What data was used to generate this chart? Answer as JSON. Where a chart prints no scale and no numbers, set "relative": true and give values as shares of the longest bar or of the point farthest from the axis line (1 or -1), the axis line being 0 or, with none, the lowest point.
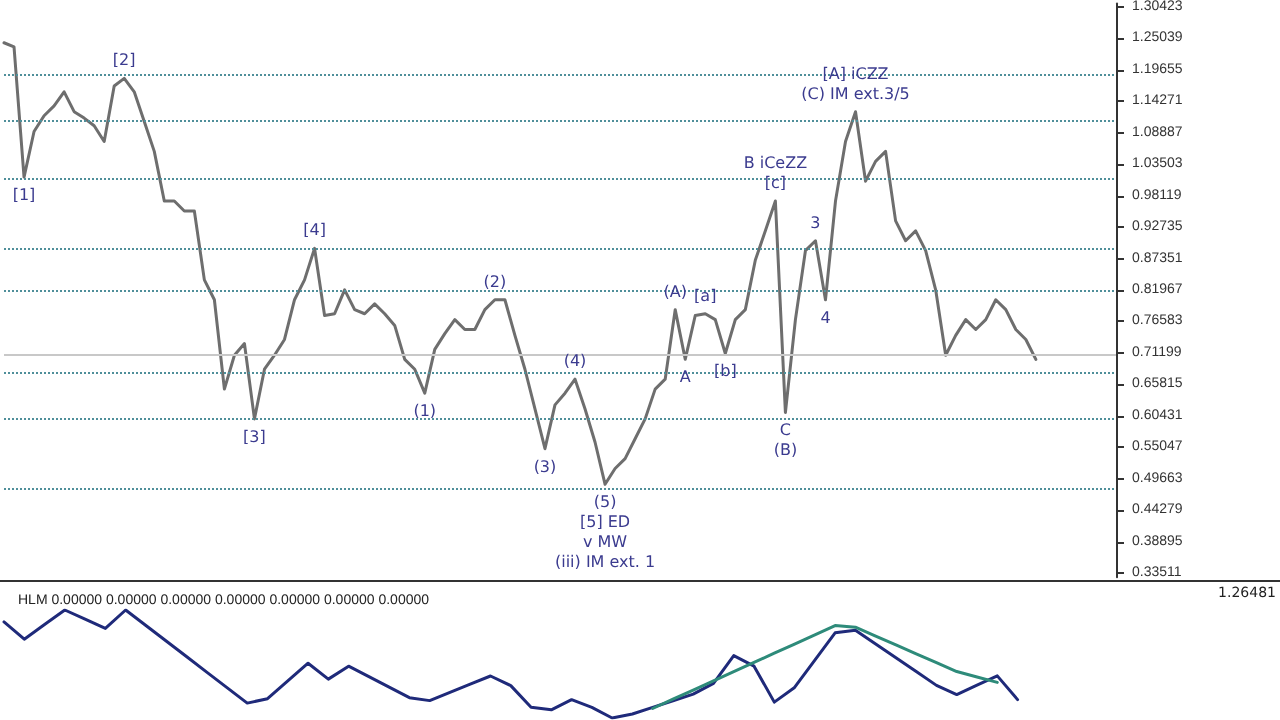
{
  "chart_data": [
    {
      "type": "line",
      "categories": [
        null,
        null,
        null,
        null,
        null,
        null,
        null,
        null,
        null,
        null,
        null,
        null,
        null,
        null,
        null,
        null,
        null,
        null,
        null,
        null,
        null,
        null,
        null,
        null,
        null,
        null,
        null,
        null,
        null,
        null,
        null,
        null,
        null,
        null,
        null,
        null,
        null,
        null,
        null,
        null,
        null,
        null,
        null,
        null,
        null,
        null,
        null,
        null,
        null,
        null,
        null,
        null,
        null,
        null,
        null,
        null,
        null,
        null,
        null,
        null,
        null,
        null,
        null,
        null,
        null,
        null,
        null,
        null,
        null,
        null,
        null,
        null,
        null,
        null,
        null,
        null,
        null,
        null,
        null,
        null,
        null,
        null,
        null,
        null,
        null,
        null,
        null,
        null,
        null,
        null,
        null,
        null,
        null,
        null,
        null,
        null,
        null,
        null,
        null,
        null,
        null,
        null,
        null,
        null,
        null,
        null,
        null,
        null,
        null,
        null,
        null,
        null
      ],
      "series": [
        {
          "color": "#6e6e6e",
          "values": [
            1.243,
            1.236,
            1.013,
            1.091,
            1.118,
            1.135,
            1.159,
            1.125,
            1.114,
            1.101,
            1.074,
            1.169,
            1.182,
            1.159,
            1.108,
            1.057,
            0.972,
            0.972,
            0.955,
            0.955,
            0.837,
            0.803,
            0.65,
            0.708,
            0.728,
            0.599,
            0.684,
            0.708,
            0.735,
            0.803,
            0.837,
            0.891,
            0.776,
            0.779,
            0.82,
            0.786,
            0.779,
            0.796,
            0.779,
            0.759,
            0.701,
            0.684,
            0.643,
            0.718,
            0.745,
            0.769,
            0.752,
            0.752,
            0.786,
            0.803,
            0.803,
            0.742,
            0.684,
            0.616,
            0.548,
            0.623,
            0.643,
            0.667,
            0.616,
            0.559,
            0.487,
            0.514,
            0.531,
            0.565,
            0.599,
            0.65,
            0.667,
            0.786,
            0.701,
            0.776,
            0.779,
            0.769,
            0.711,
            0.769,
            0.786,
            0.871,
            0.921,
            0.972,
            0.61,
            0.769,
            0.887,
            0.904,
            0.803,
            0.972,
            1.074,
            1.125,
            1.006,
            1.04,
            1.057,
            0.938,
            0.904,
            0.921,
            0.887,
            0.82,
            0.708,
            0.742,
            0.769,
            0.752,
            0.769,
            0.803,
            0.786,
            0.752,
            0.735,
            0.701,
            null,
            null,
            null,
            null,
            null,
            null,
            null,
            null
          ]
        }
      ],
      "ylim": [
        0.328,
        1.31
      ],
      "yticks": [
        0.33511,
        0.38895,
        0.44279,
        0.49663,
        0.55047,
        0.60431,
        0.65815,
        0.71199,
        0.76583,
        0.81967,
        0.87351,
        0.92735,
        0.98119,
        1.03503,
        1.08887,
        1.14271,
        1.19655,
        1.25039,
        1.30423
      ],
      "tick_labels": "y",
      "marker": "none",
      "line_style": "solid",
      "ref_lines": [
        {
          "axis": "y",
          "value": 1.192,
          "color": "#4f8f9a",
          "line_style": "dotted"
        },
        {
          "axis": "y",
          "value": 1.108,
          "color": "#4f8f9a",
          "line_style": "dotted"
        },
        {
          "axis": "y",
          "value": 1.013,
          "color": "#4f8f9a",
          "line_style": "dotted"
        },
        {
          "axis": "y",
          "value": 0.894,
          "color": "#4f8f9a",
          "line_style": "dotted"
        },
        {
          "axis": "y",
          "value": 0.823,
          "color": "#4f8f9a",
          "line_style": "dotted"
        },
        {
          "axis": "y",
          "value": 0.71199,
          "color": "#c8c8c8",
          "line_style": "solid"
        },
        {
          "axis": "y",
          "value": 0.677,
          "color": "#4f8f9a",
          "line_style": "dotted"
        },
        {
          "axis": "y",
          "value": 0.603,
          "color": "#4f8f9a",
          "line_style": "dotted"
        },
        {
          "axis": "y",
          "value": 0.477,
          "color": "#4f8f9a",
          "line_style": "dotted"
        }
      ],
      "annotations": [
        {
          "text": "[1]",
          "y": 1.013
        },
        {
          "text": "[2]",
          "y": 1.182
        },
        {
          "text": "[3]",
          "y": 0.599
        },
        {
          "text": "[4]",
          "y": 0.891
        },
        {
          "text": "(1)",
          "y": 0.643
        },
        {
          "text": "(2)",
          "y": 0.803
        },
        {
          "text": "(3)",
          "y": 0.548
        },
        {
          "text": "(4)",
          "y": 0.667
        },
        {
          "text": "(5)",
          "y": 0.487
        },
        "[5] ED",
        "v MW",
        "(iii) IM ext. 1",
        {
          "text": "(A)",
          "y": 0.786
        },
        {
          "text": "A",
          "y": 0.701
        },
        {
          "text": "[a]",
          "y": 0.779
        },
        {
          "text": "[b]",
          "y": 0.711
        },
        {
          "text": "[c]",
          "y": 0.972
        },
        {
          "text": "B iCeZZ",
          "y": 0.972
        },
        {
          "text": "C",
          "y": 0.61
        },
        {
          "text": "(B)",
          "y": 0.61
        },
        {
          "text": "3",
          "y": 0.904
        },
        {
          "text": "4",
          "y": 0.803
        },
        {
          "text": "(C) IM ext.3/5",
          "y": 1.125
        },
        {
          "text": "[A] iCZZ",
          "y": 1.125
        }
      ]
    },
    {
      "type": "line",
      "title": "HLM 0.00000 0.00000 0.00000 0.00000 0.00000 0.00000 0.00000",
      "relative": true,
      "tick_labels": false,
      "marker": "none",
      "annotations": [
        "1.26481"
      ],
      "categories": [
        null,
        null,
        null,
        null,
        null,
        null,
        null,
        null,
        null,
        null,
        null,
        null,
        null,
        null,
        null,
        null,
        null,
        null,
        null,
        null,
        null,
        null,
        null,
        null,
        null,
        null,
        null,
        null,
        null,
        null,
        null,
        null,
        null,
        null,
        null,
        null,
        null,
        null,
        null,
        null,
        null,
        null,
        null,
        null,
        null,
        null,
        null,
        null,
        null,
        null,
        null,
        null,
        null,
        null,
        null,
        null,
        null,
        null,
        null,
        null
      ],
      "series": [
        {
          "color": "#1f2a7a",
          "values": [
            0.89,
            0.73,
            0.865,
            1,
            0.915,
            0.83,
            1,
            0.856,
            0.713,
            0.569,
            0.425,
            0.281,
            0.138,
            0.179,
            0.343,
            0.507,
            0.36,
            0.48,
            0.383,
            0.286,
            0.188,
            0.161,
            0.237,
            0.313,
            0.389,
            0.3,
            0.1,
            0.076,
            0.17,
            0.099,
            0,
            0.037,
            0.098,
            0.16,
            0.221,
            0.321,
            0.578,
            0.48,
            0.147,
            0.283,
            0.536,
            0.789,
            0.813,
            0.686,
            0.558,
            0.43,
            0.302,
            0.217,
            0.304,
            0.39,
            0.17,
            null,
            null,
            null,
            null,
            null,
            null,
            null,
            null,
            null
          ]
        },
        {
          "color": "#2e8b7a",
          "values": [
            null,
            null,
            null,
            null,
            null,
            null,
            null,
            null,
            null,
            null,
            null,
            null,
            null,
            null,
            null,
            null,
            null,
            null,
            null,
            null,
            null,
            null,
            null,
            null,
            null,
            null,
            null,
            null,
            null,
            null,
            null,
            null,
            0.088,
            0.174,
            0.259,
            0.344,
            0.429,
            0.514,
            0.6,
            0.685,
            0.77,
            0.856,
            0.841,
            0.759,
            0.676,
            0.594,
            0.512,
            0.43,
            0.38,
            0.33,
            null,
            null,
            null,
            null,
            null,
            null,
            null,
            null,
            null,
            null
          ]
        }
      ]
    }
  ]
}
